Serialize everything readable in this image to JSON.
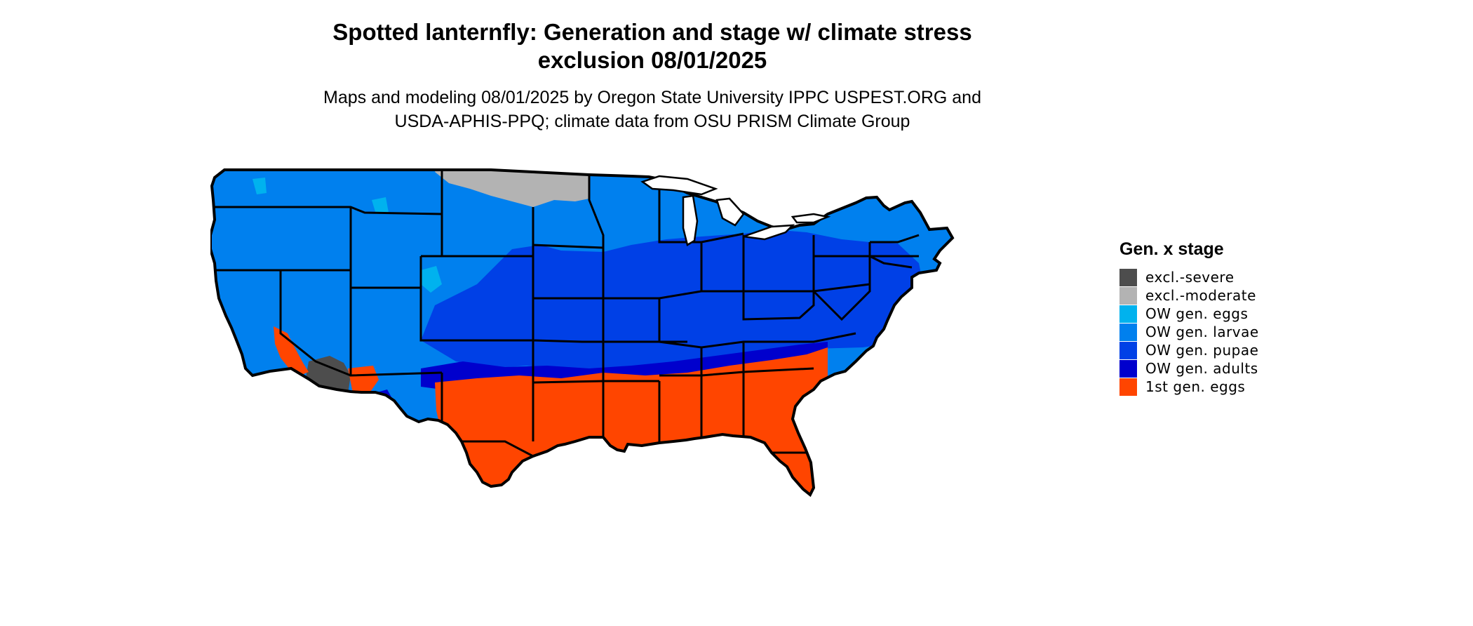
{
  "title": {
    "line1": "Spotted lanternfly: Generation and stage w/ climate stress",
    "line2": "exclusion 08/01/2025"
  },
  "subtitle": {
    "line1": "Maps and modeling 08/01/2025 by Oregon State University IPPC USPEST.ORG and",
    "line2": "USDA-APHIS-PPQ; climate data from OSU PRISM Climate Group"
  },
  "legend": {
    "title": "Gen. x stage",
    "items": [
      {
        "label": "excl.-severe",
        "color": "#4d4d4d"
      },
      {
        "label": "excl.-moderate",
        "color": "#b3b3b3"
      },
      {
        "label": "OW gen. eggs",
        "color": "#00b2ee"
      },
      {
        "label": "OW gen. larvae",
        "color": "#0080ee"
      },
      {
        "label": "OW gen. pupae",
        "color": "#0040e6"
      },
      {
        "label": "OW gen. adults",
        "color": "#0000cd"
      },
      {
        "label": "1st gen. eggs",
        "color": "#ff4500"
      }
    ]
  },
  "map": {
    "region": "Contiguous United States",
    "boundary_color": "#000000",
    "zones": {
      "north_excl_moderate": "#b3b3b3",
      "west_north_larvae": "#0080ee",
      "central_pupae": "#0040e6",
      "adults_band": "#0000cd",
      "south_first_gen_eggs": "#ff4500",
      "southwest_excl_severe": "#4d4d4d",
      "mountain_eggs": "#00b2ee"
    }
  }
}
